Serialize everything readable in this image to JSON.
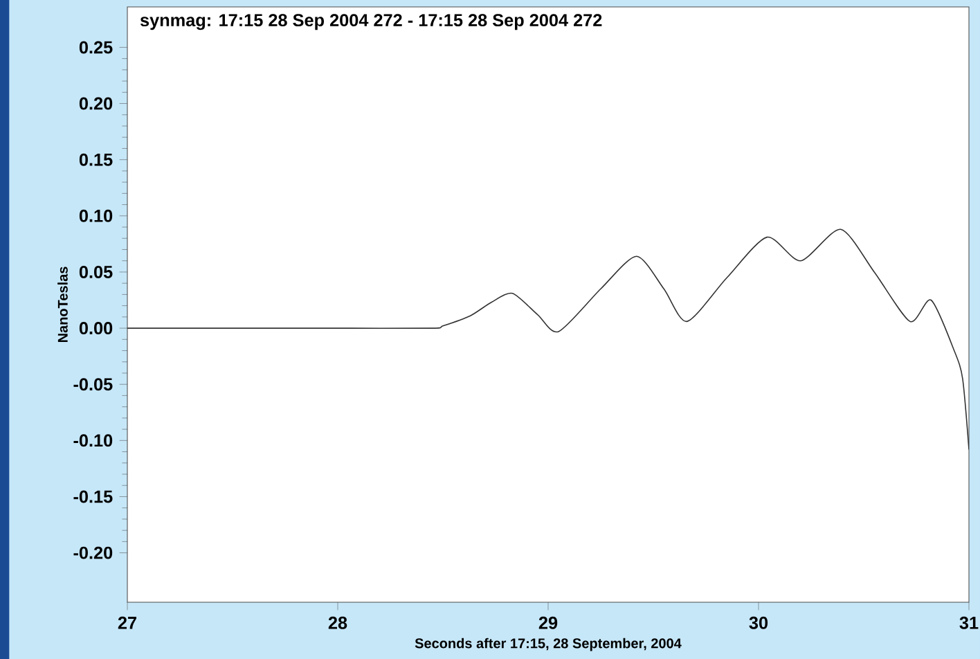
{
  "chart_data": {
    "type": "line",
    "title": "synmag: 17:15 28 Sep 2004 272 - 17:15 28 Sep 2004 272",
    "xlabel": "Seconds after 17:15, 28 September, 2004",
    "ylabel": "NanoTeslas",
    "x": [
      27.0,
      27.5,
      28.0,
      28.45,
      28.5,
      28.63,
      28.73,
      28.83,
      28.95,
      29.05,
      29.25,
      29.42,
      29.55,
      29.66,
      29.85,
      30.04,
      30.2,
      30.39,
      30.55,
      30.72,
      30.82,
      30.93,
      30.97,
      31.0
    ],
    "series": [
      {
        "color": "#333333",
        "values": [
          0.0,
          0.0,
          0.0,
          0.0,
          0.002,
          0.011,
          0.023,
          0.031,
          0.012,
          -0.003,
          0.035,
          0.064,
          0.035,
          0.006,
          0.045,
          0.081,
          0.06,
          0.088,
          0.05,
          0.006,
          0.025,
          -0.02,
          -0.045,
          -0.108
        ]
      }
    ],
    "xlim": [
      27,
      31
    ],
    "ylim": [
      -0.244,
      0.286
    ],
    "xticks": [
      27,
      28,
      29,
      30,
      31
    ],
    "yticks": [
      {
        "value": -0.2,
        "label": "-0.20"
      },
      {
        "value": -0.15,
        "label": "-0.15"
      },
      {
        "value": -0.1,
        "label": "-0.10"
      },
      {
        "value": -0.05,
        "label": "-0.05"
      },
      {
        "value": 0,
        "label": "0.00"
      },
      {
        "value": 0.05,
        "label": "0.05"
      },
      {
        "value": 0.1,
        "label": "0.10"
      },
      {
        "value": 0.15,
        "label": "0.15"
      },
      {
        "value": 0.2,
        "label": "0.20"
      },
      {
        "value": 0.25,
        "label": "0.25"
      }
    ],
    "marker": "none",
    "line_style": "solid"
  }
}
